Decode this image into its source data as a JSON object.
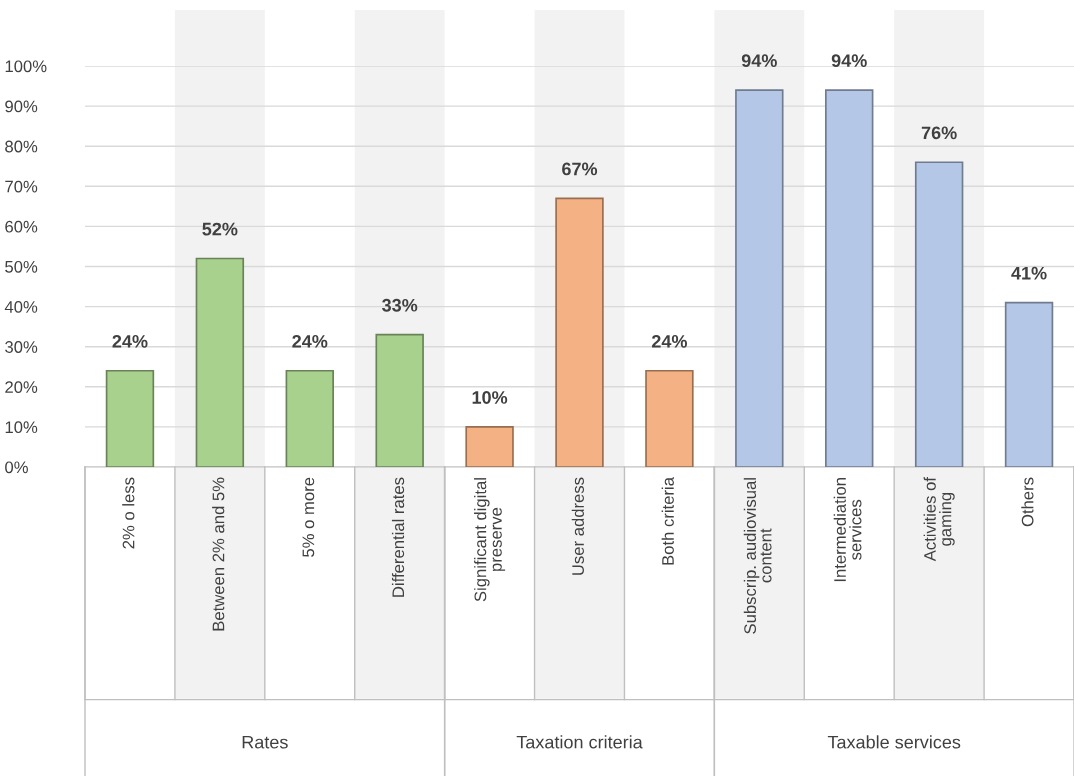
{
  "chart_data": {
    "type": "bar",
    "categories": [
      "2% o less",
      "Between 2% and 5%",
      "5% o more",
      "Differential rates",
      "Significant digital\npreserve",
      "User address",
      "Both criteria",
      "Subscrip. audiovisual\ncontent",
      "Intermediation\nservices",
      "Activities of\ngaming",
      "Others"
    ],
    "series": [
      {
        "color": "#a9d18e",
        "values": [
          24,
          52,
          24,
          33,
          null,
          null,
          null,
          null,
          null,
          null,
          null
        ],
        "value_labels": [
          "24%",
          "52%",
          "24%",
          "33%",
          null,
          null,
          null,
          null,
          null,
          null,
          null
        ]
      },
      {
        "color": "#f4b183",
        "values": [
          null,
          null,
          null,
          null,
          10,
          67,
          24,
          null,
          null,
          null,
          null
        ],
        "value_labels": [
          null,
          null,
          null,
          null,
          "10%",
          "67%",
          "24%",
          null,
          null,
          null,
          null
        ]
      },
      {
        "color": "#b4c7e7",
        "values": [
          null,
          null,
          null,
          null,
          null,
          null,
          null,
          94,
          94,
          76,
          41
        ],
        "value_labels": [
          null,
          null,
          null,
          null,
          null,
          null,
          null,
          "94%",
          "94%",
          "76%",
          "41%"
        ]
      }
    ],
    "ylim": [
      0,
      100
    ],
    "annotations": [
      "Rates",
      "Taxation criteria",
      "Taxable services"
    ],
    "yticks": [
      {
        "value": 0,
        "label": "0%"
      },
      {
        "value": 10,
        "label": "10%"
      },
      {
        "value": 20,
        "label": "20%"
      },
      {
        "value": 30,
        "label": "30%"
      },
      {
        "value": 40,
        "label": "40%"
      },
      {
        "value": 50,
        "label": "50%"
      },
      {
        "value": 60,
        "label": "60%"
      },
      {
        "value": 70,
        "label": "70%"
      },
      {
        "value": 80,
        "label": "80%"
      },
      {
        "value": 90,
        "label": "90%"
      },
      {
        "value": 100,
        "label": "100%"
      }
    ],
    "grid": "y",
    "bands": [
      {
        "axis": "x",
        "from": "Between 2% and 5%",
        "to": "Between 2% and 5%",
        "color": "#f2f2f2"
      },
      {
        "axis": "x",
        "from": "Differential rates",
        "to": "Differential rates",
        "color": "#f2f2f2"
      },
      {
        "axis": "x",
        "from": "User address",
        "to": "User address",
        "color": "#f2f2f2"
      },
      {
        "axis": "x",
        "from": "Subscrip. audiovisual\ncontent",
        "to": "Subscrip. audiovisual\ncontent",
        "color": "#f2f2f2"
      },
      {
        "axis": "x",
        "from": "Activities of\ngaming",
        "to": "Activities of\ngaming",
        "color": "#f2f2f2"
      }
    ]
  }
}
